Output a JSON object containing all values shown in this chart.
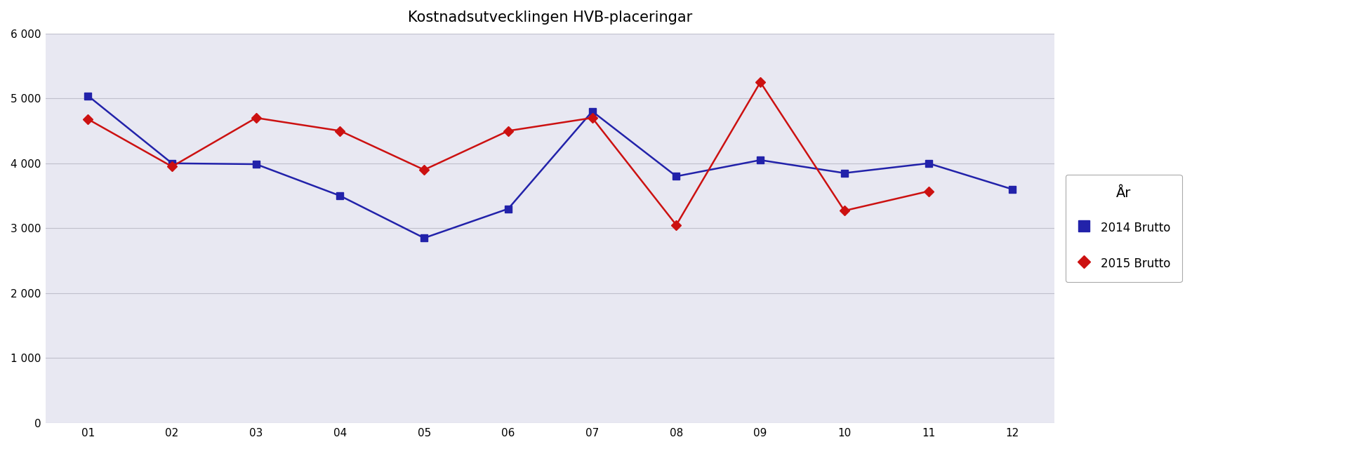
{
  "title": "Kostnadsutvecklingen HVB-placeringar",
  "months": [
    "01",
    "02",
    "03",
    "04",
    "05",
    "06",
    "07",
    "08",
    "09",
    "10",
    "11",
    "12"
  ],
  "brutto_2014": [
    5040,
    4000,
    3987,
    3500,
    2850,
    3300,
    4800,
    3800,
    4050,
    3850,
    4000,
    3600
  ],
  "brutto_2015": [
    4680,
    3950,
    4700,
    4500,
    3900,
    4500,
    4700,
    3050,
    5250,
    3270,
    3570,
    null
  ],
  "color_2014": "#2222AA",
  "color_2015": "#CC1111",
  "ylim": [
    0,
    6000
  ],
  "yticks": [
    0,
    1000,
    2000,
    3000,
    4000,
    5000,
    6000
  ],
  "legend_title": "År",
  "legend_2014": "2014 Brutto",
  "legend_2015": "2015 Brutto",
  "plot_bg_color": "#E8E8F2",
  "fig_bg_color": "#FFFFFF",
  "grid_color": "#C0C0CC",
  "title_fontsize": 15,
  "tick_fontsize": 11,
  "legend_fontsize": 12,
  "legend_title_fontsize": 14
}
